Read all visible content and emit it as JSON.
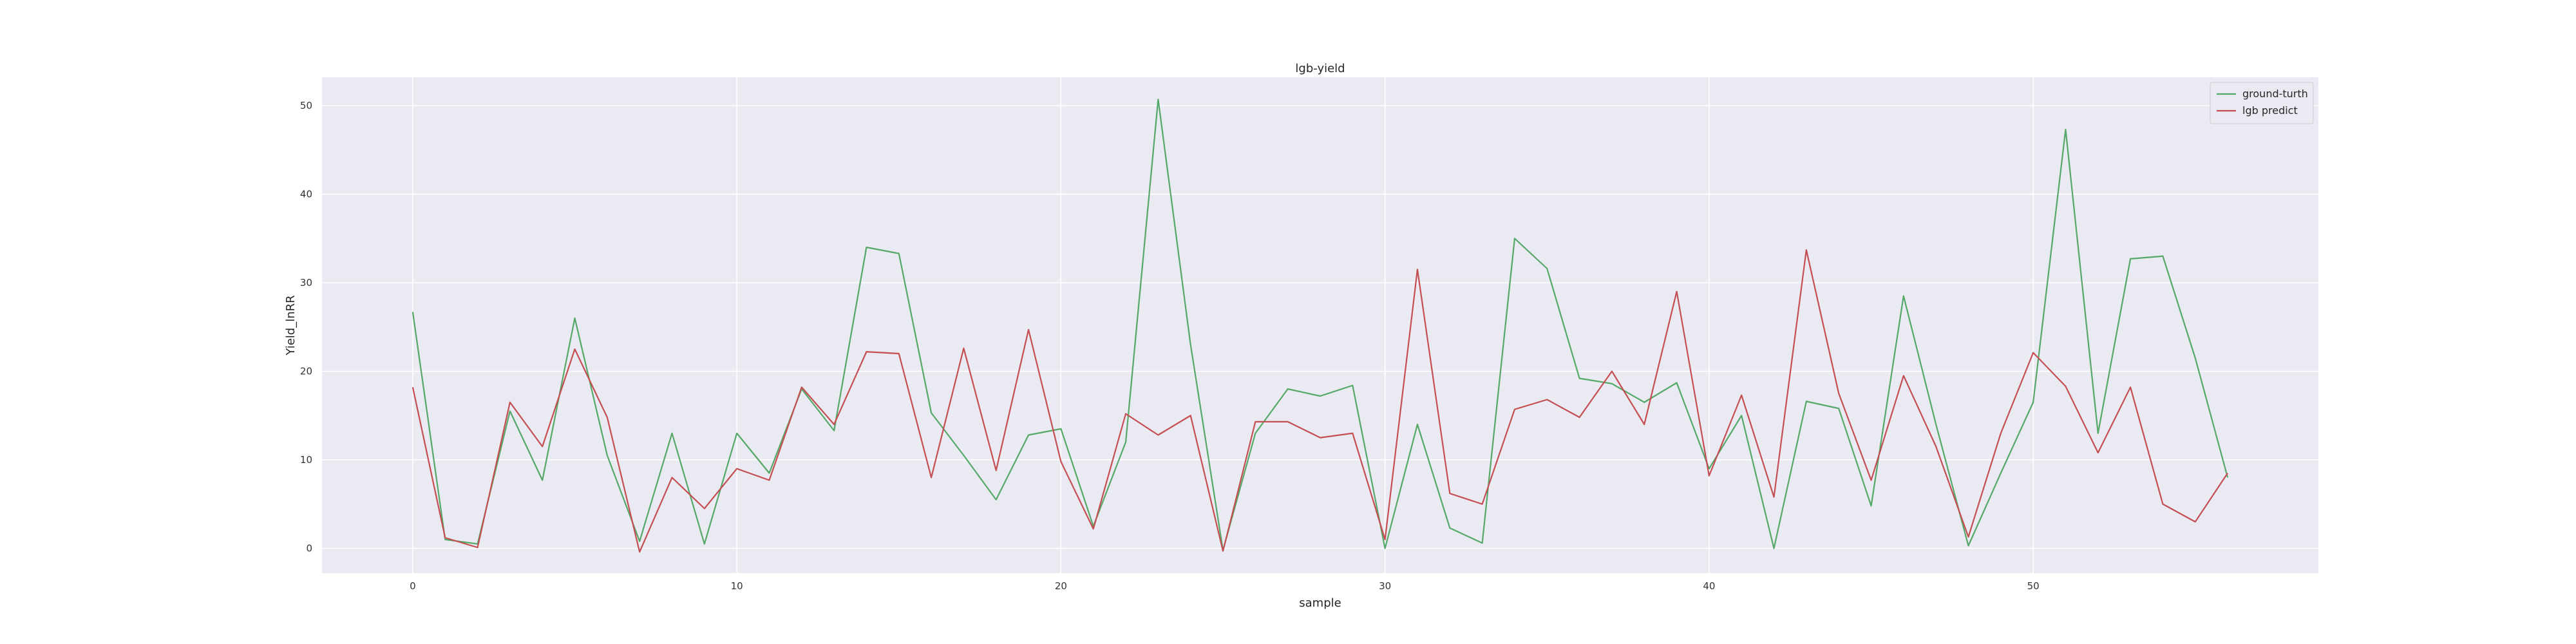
{
  "chart_data": {
    "type": "line",
    "title": "lgb-yield",
    "xlabel": "sample",
    "ylabel": "Yield_lnRR",
    "x": [
      0,
      1,
      2,
      3,
      4,
      5,
      6,
      7,
      8,
      9,
      10,
      11,
      12,
      13,
      14,
      15,
      16,
      17,
      18,
      19,
      20,
      21,
      22,
      23,
      24,
      25,
      26,
      27,
      28,
      29,
      30,
      31,
      32,
      33,
      34,
      35,
      36,
      37,
      38,
      39,
      40,
      41,
      42,
      43,
      44,
      45,
      46,
      47,
      48,
      49,
      50,
      51,
      52,
      53,
      54,
      55,
      56
    ],
    "xlim": [
      -2.8,
      58.8
    ],
    "ylim": [
      -2.8,
      53.2
    ],
    "xticks": [
      0,
      10,
      20,
      30,
      40,
      50
    ],
    "yticks": [
      0,
      10,
      20,
      30,
      40,
      50
    ],
    "grid": true,
    "legend_position": "top-right",
    "background_color": "#EAEAF2",
    "series": [
      {
        "name": "ground-turth",
        "color": "#55A868",
        "values": [
          26.7,
          1.0,
          0.5,
          15.5,
          7.7,
          26.0,
          10.5,
          0.8,
          13.0,
          0.5,
          13.0,
          8.5,
          18.0,
          13.3,
          34.0,
          33.3,
          15.3,
          10.5,
          5.5,
          12.8,
          13.5,
          2.5,
          12.0,
          50.7,
          23.0,
          -0.2,
          13.0,
          18.0,
          17.2,
          18.4,
          0.0,
          14.0,
          2.3,
          0.6,
          35.0,
          31.6,
          19.2,
          18.6,
          16.5,
          18.7,
          9.0,
          15.0,
          0.0,
          16.6,
          15.8,
          4.8,
          28.5,
          14.0,
          0.3,
          8.5,
          16.5,
          47.3,
          13.0,
          32.7,
          33.0,
          21.5,
          8.0
        ]
      },
      {
        "name": "lgb predict",
        "color": "#C44E52",
        "values": [
          18.2,
          1.2,
          0.1,
          16.5,
          11.5,
          22.5,
          14.8,
          -0.4,
          8.0,
          4.5,
          9.0,
          7.7,
          18.2,
          14.0,
          22.2,
          22.0,
          8.0,
          22.6,
          8.8,
          24.7,
          9.8,
          2.2,
          15.2,
          12.8,
          15.0,
          -0.3,
          14.3,
          14.3,
          12.5,
          13.0,
          1.0,
          31.5,
          6.2,
          5.0,
          15.7,
          16.8,
          14.8,
          20.0,
          14.0,
          29.0,
          8.2,
          17.3,
          5.8,
          33.7,
          17.5,
          7.7,
          19.5,
          11.5,
          1.3,
          13.0,
          22.1,
          18.3,
          10.8,
          18.2,
          5.0,
          3.0,
          8.5
        ]
      }
    ]
  }
}
